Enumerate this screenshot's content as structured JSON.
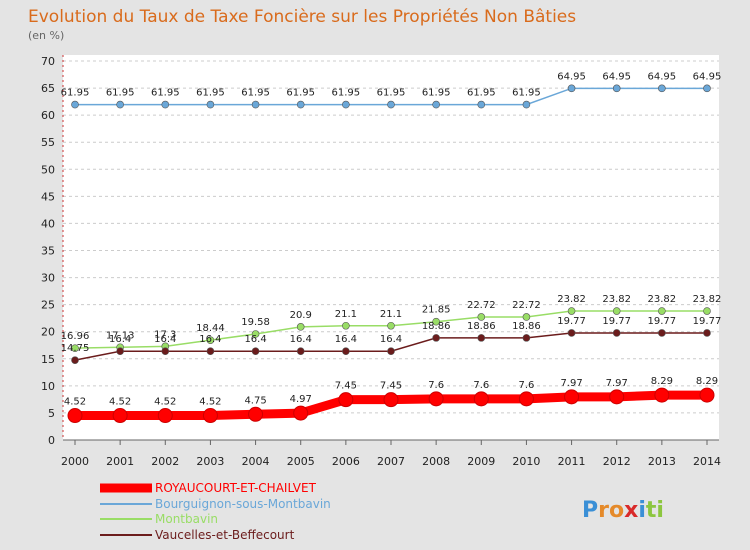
{
  "chart_data": {
    "type": "line",
    "title": "Evolution du Taux de Taxe Foncière sur les Propriétés Non Bâties",
    "subtitle": "(en %)",
    "x": [
      "2000",
      "2001",
      "2002",
      "2003",
      "2004",
      "2005",
      "2006",
      "2007",
      "2008",
      "2009",
      "2010",
      "2011",
      "2012",
      "2013",
      "2014"
    ],
    "ylim": [
      0,
      70
    ],
    "yticks": [
      0,
      5,
      10,
      15,
      20,
      25,
      30,
      35,
      40,
      45,
      50,
      55,
      60,
      65,
      70
    ],
    "grid": true,
    "legend_position": "bottom-left",
    "series": [
      {
        "name": "ROYAUCOURT-ET-CHAILVET",
        "color": "#ff0000",
        "emphasis": true,
        "values": [
          4.52,
          4.52,
          4.52,
          4.52,
          4.75,
          4.97,
          7.45,
          7.45,
          7.6,
          7.6,
          7.6,
          7.97,
          7.97,
          8.29,
          8.29
        ],
        "labels": [
          "4.52",
          "4.52",
          "4.52",
          "4.52",
          "4.75",
          "4.97",
          "7.45",
          "7.45",
          "7.6",
          "7.6",
          "7.6",
          "7.97",
          "7.97",
          "8.29",
          "8.29"
        ]
      },
      {
        "name": "Bourguignon-sous-Montbavin",
        "color": "#6aa7d8",
        "values": [
          61.95,
          61.95,
          61.95,
          61.95,
          61.95,
          61.95,
          61.95,
          61.95,
          61.95,
          61.95,
          61.95,
          64.95,
          64.95,
          64.95,
          64.95
        ],
        "labels": [
          "61.95",
          "61.95",
          "61.95",
          "61.95",
          "61.95",
          "61.95",
          "61.95",
          "61.95",
          "61.95",
          "61.95",
          "61.95",
          "64.95",
          "64.95",
          "64.95",
          "64.95"
        ]
      },
      {
        "name": "Montbavin",
        "color": "#99dd66",
        "values": [
          16.96,
          17.13,
          17.3,
          18.44,
          19.58,
          20.9,
          21.1,
          21.1,
          21.85,
          22.72,
          22.72,
          23.82,
          23.82,
          23.82,
          23.82
        ],
        "labels": [
          "16.96",
          "17.13",
          "17.3",
          "18.44",
          "19.58",
          "20.9",
          "21.1",
          "21.1",
          "21.85",
          "22.72",
          "22.72",
          "23.82",
          "23.82",
          "23.82",
          "23.82"
        ]
      },
      {
        "name": "Vaucelles-et-Beffecourt",
        "color": "#6b1c1c",
        "values": [
          14.75,
          16.4,
          16.4,
          16.4,
          16.4,
          16.4,
          16.4,
          16.4,
          18.86,
          18.86,
          18.86,
          19.77,
          19.77,
          19.77,
          19.77
        ],
        "labels": [
          "14.75",
          "16.4",
          "16.4",
          "16.4",
          "16.4",
          "16.4",
          "16.4",
          "16.4",
          "18.86",
          "18.86",
          "18.86",
          "19.77",
          "19.77",
          "19.77",
          "19.77"
        ]
      }
    ]
  },
  "logo": {
    "text": "Proxiti",
    "letters": [
      {
        "ch": "P",
        "color": "#3a8fd6"
      },
      {
        "ch": "r",
        "color": "#e58a2a"
      },
      {
        "ch": "o",
        "color": "#e58a2a"
      },
      {
        "ch": "x",
        "color": "#d92a2a"
      },
      {
        "ch": "i",
        "color": "#3a8fd6"
      },
      {
        "ch": "t",
        "color": "#8cc63f"
      },
      {
        "ch": "i",
        "color": "#8cc63f"
      }
    ]
  }
}
